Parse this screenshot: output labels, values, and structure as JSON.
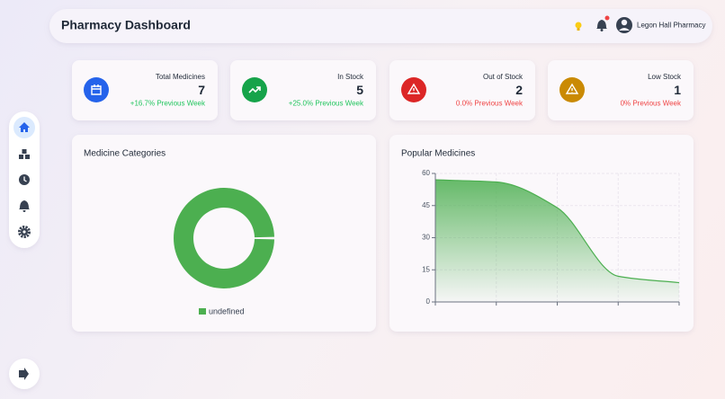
{
  "header": {
    "title": "Pharmacy Dashboard",
    "user": "Legon Hall Pharmacy"
  },
  "stats": [
    {
      "label": "Total Medicines",
      "value": 7,
      "change": "+16.7% Previous Week",
      "icon_color": "#2563eb",
      "change_color": "#22c55e"
    },
    {
      "label": "In Stock",
      "value": 5,
      "change": "+25.0% Previous Week",
      "icon_color": "#16a34a",
      "change_color": "#22c55e"
    },
    {
      "label": "Out of Stock",
      "value": 2,
      "change": "0.0% Previous Week",
      "icon_color": "#dc2626",
      "change_color": "#ef4444"
    },
    {
      "label": "Low Stock",
      "value": 1,
      "change": "0% Previous Week",
      "icon_color": "#ca8a04",
      "change_color": "#ef4444"
    }
  ],
  "chart_data": [
    {
      "type": "pie",
      "title": "Medicine Categories",
      "categories": [
        "undefined"
      ],
      "values": [
        7
      ],
      "colors": [
        "#4caf50"
      ],
      "legend": "bottom"
    },
    {
      "type": "area",
      "title": "Popular Medicines",
      "categories": [
        null,
        null,
        null,
        null,
        null
      ],
      "values": [
        57,
        56,
        44,
        12,
        9
      ],
      "color": "#4caf50",
      "ylim": [
        0,
        60
      ],
      "yticks": [
        0,
        15,
        30,
        45,
        60
      ],
      "grid": true
    }
  ]
}
